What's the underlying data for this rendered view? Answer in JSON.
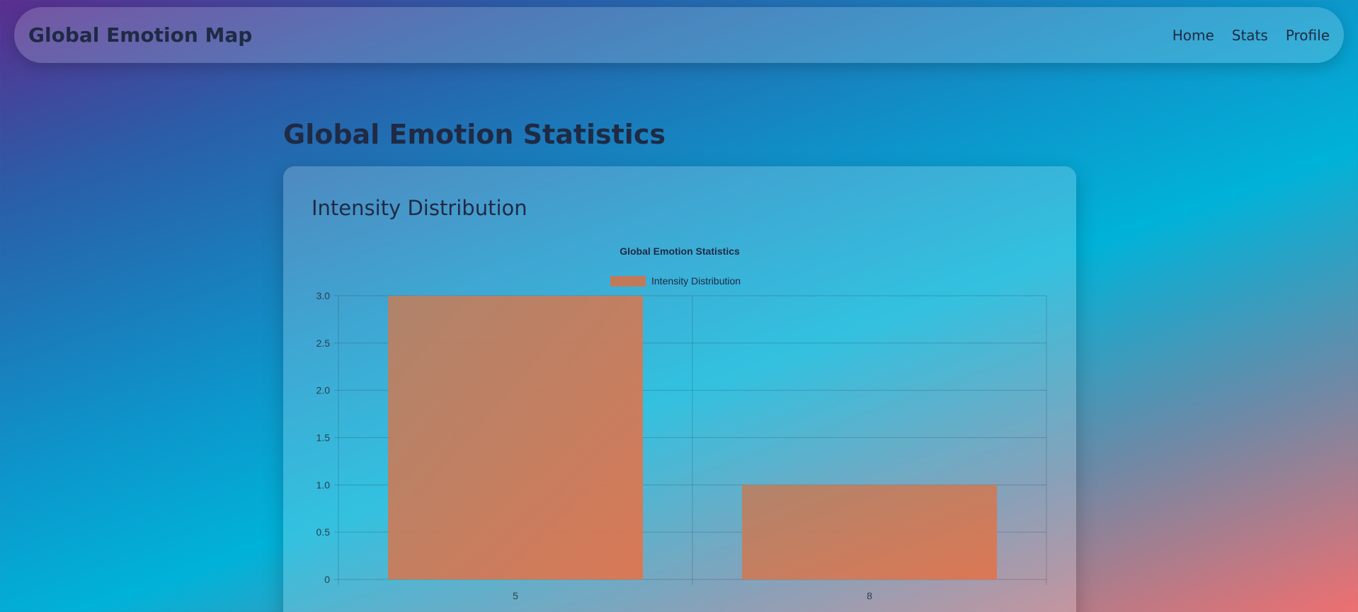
{
  "app": {
    "title": "Global Emotion Map"
  },
  "nav": {
    "items": [
      {
        "label": "Home"
      },
      {
        "label": "Stats"
      },
      {
        "label": "Profile"
      }
    ]
  },
  "page": {
    "title": "Global Emotion Statistics"
  },
  "card": {
    "title": "Intensity Distribution"
  },
  "chart_data": {
    "type": "bar",
    "title": "Global Emotion Statistics",
    "categories": [
      "5",
      "8"
    ],
    "series": [
      {
        "name": "Intensity Distribution",
        "values": [
          3,
          1
        ],
        "color": "#c07a5a"
      }
    ],
    "ylim": [
      0,
      3
    ],
    "yticks": [
      "0",
      "0.5",
      "1.0",
      "1.5",
      "2.0",
      "2.5",
      "3.0"
    ],
    "grid": true,
    "legend": "top-center"
  }
}
